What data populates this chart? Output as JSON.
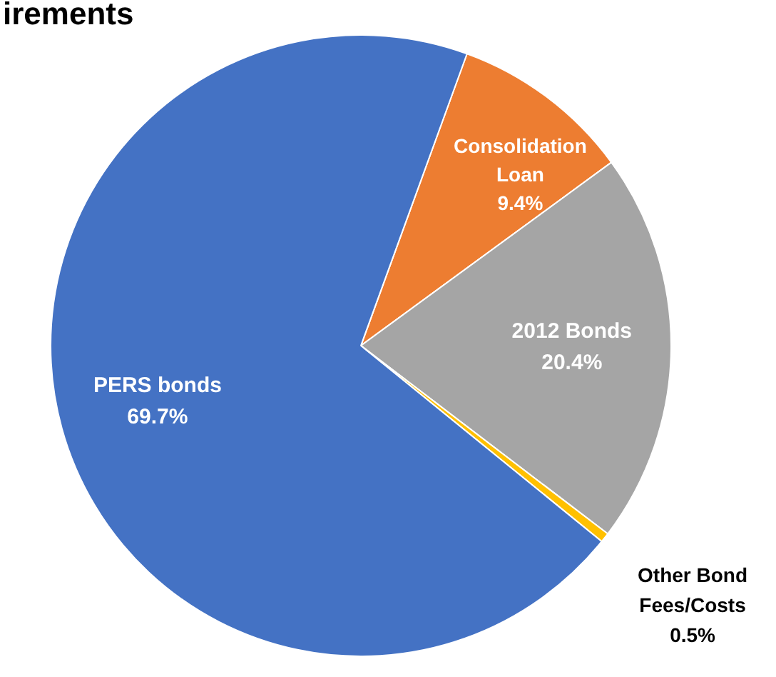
{
  "chart_data": {
    "type": "pie",
    "title": "irements",
    "categories": [
      "Consolidation Loan",
      "2012 Bonds",
      "Other Bond Fees/Costs",
      "PERS bonds"
    ],
    "values": [
      9.4,
      20.4,
      0.5,
      69.7
    ],
    "colors": [
      "#ed7d31",
      "#a5a5a5",
      "#ffc000",
      "#4472c4"
    ],
    "value_labels": [
      "9.4%",
      "20.4%",
      "0.5%",
      "69.7%"
    ],
    "legend": false
  }
}
